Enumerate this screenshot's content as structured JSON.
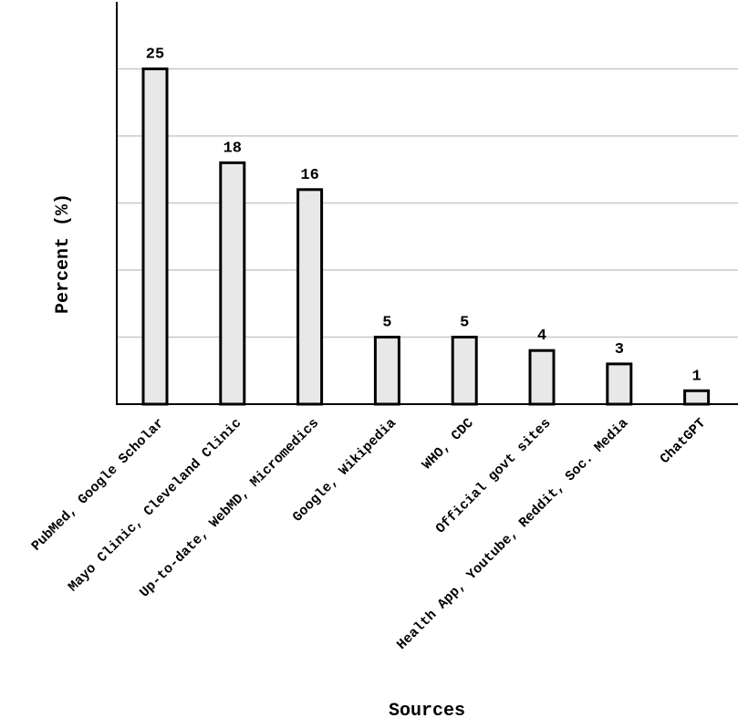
{
  "chart_data": {
    "type": "bar",
    "title": "",
    "xlabel": "Sources",
    "ylabel": "Percent (%)",
    "categories": [
      "PubMed, Google Scholar",
      "Mayo Clinic, Cleveland Clinic",
      "Up-to-date, WebMD, Micromedics",
      "Google, Wikipedia",
      "WHO, CDC",
      "Official govt sites",
      "Health App, Youtube, Reddit, Soc. Media",
      "ChatGPT"
    ],
    "values": [
      25,
      18,
      16,
      5,
      5,
      4,
      3,
      1
    ],
    "value_labels": [
      "25",
      "18",
      "16",
      "5",
      "5",
      "4",
      "3",
      "1"
    ],
    "ylim": [
      0,
      30
    ],
    "grid": true,
    "bar_fill": "#e8e8e8",
    "bar_stroke": "#000000",
    "grid_color": "#c8c8c8"
  }
}
